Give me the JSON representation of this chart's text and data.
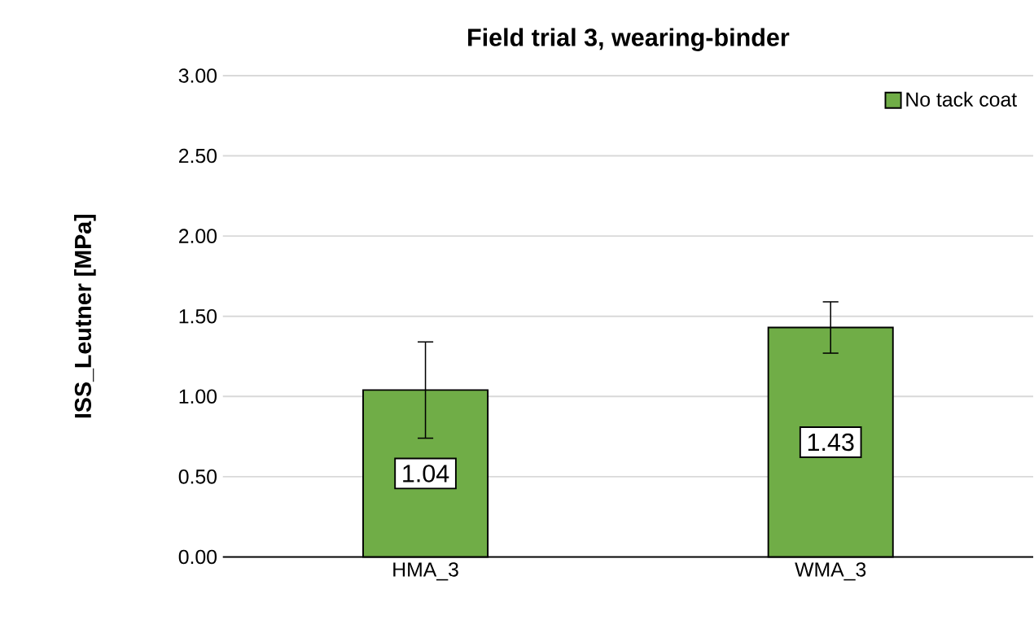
{
  "chart_data": {
    "type": "bar",
    "title": "Field trial 3, wearing-binder",
    "ylabel": "ISS_Leutner [MPa]",
    "categories": [
      "HMA_3",
      "WMA_3"
    ],
    "series": [
      {
        "name": "No tack coat",
        "color": "#70ad47",
        "values": [
          1.04,
          1.43
        ],
        "errors": [
          0.3,
          0.16
        ],
        "value_labels": [
          "1.04",
          "1.43"
        ]
      }
    ],
    "ylim": [
      0,
      3
    ],
    "yticks": [
      {
        "value": 0,
        "label": "0.00"
      },
      {
        "value": 0.5,
        "label": "0.50"
      },
      {
        "value": 1,
        "label": "1.00"
      },
      {
        "value": 1.5,
        "label": "1.50"
      },
      {
        "value": 2,
        "label": "2.00"
      },
      {
        "value": 2.5,
        "label": "2.50"
      },
      {
        "value": 3,
        "label": "3.00"
      }
    ],
    "grid": "y",
    "legend": "top right"
  }
}
